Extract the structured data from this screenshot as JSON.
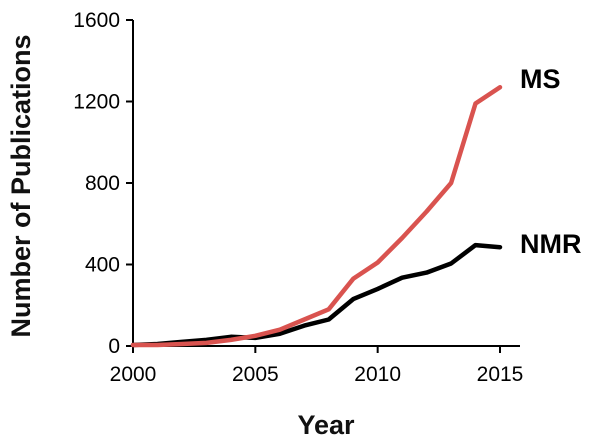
{
  "chart_data": {
    "type": "line",
    "title": "",
    "xlabel": "Year",
    "ylabel": "Number of Publications",
    "xlim": [
      2000,
      2016
    ],
    "ylim": [
      0,
      1600
    ],
    "x_ticks": [
      2000,
      2005,
      2010,
      2015
    ],
    "y_ticks": [
      0,
      400,
      800,
      1200,
      1600
    ],
    "grid": false,
    "legend": "direct labels at line ends (right)",
    "series": [
      {
        "name": "MS",
        "color": "#d9534f",
        "x": [
          2000,
          2001,
          2002,
          2003,
          2004,
          2005,
          2006,
          2007,
          2008,
          2009,
          2010,
          2011,
          2012,
          2013,
          2014,
          2015
        ],
        "y": [
          5,
          5,
          10,
          15,
          30,
          50,
          80,
          130,
          180,
          330,
          410,
          530,
          660,
          800,
          1190,
          1270
        ]
      },
      {
        "name": "NMR",
        "color": "#000000",
        "x": [
          2000,
          2001,
          2002,
          2003,
          2004,
          2005,
          2006,
          2007,
          2008,
          2009,
          2010,
          2011,
          2012,
          2013,
          2014,
          2015
        ],
        "y": [
          5,
          10,
          20,
          30,
          45,
          40,
          60,
          100,
          130,
          230,
          280,
          335,
          360,
          405,
          495,
          485
        ]
      }
    ]
  }
}
